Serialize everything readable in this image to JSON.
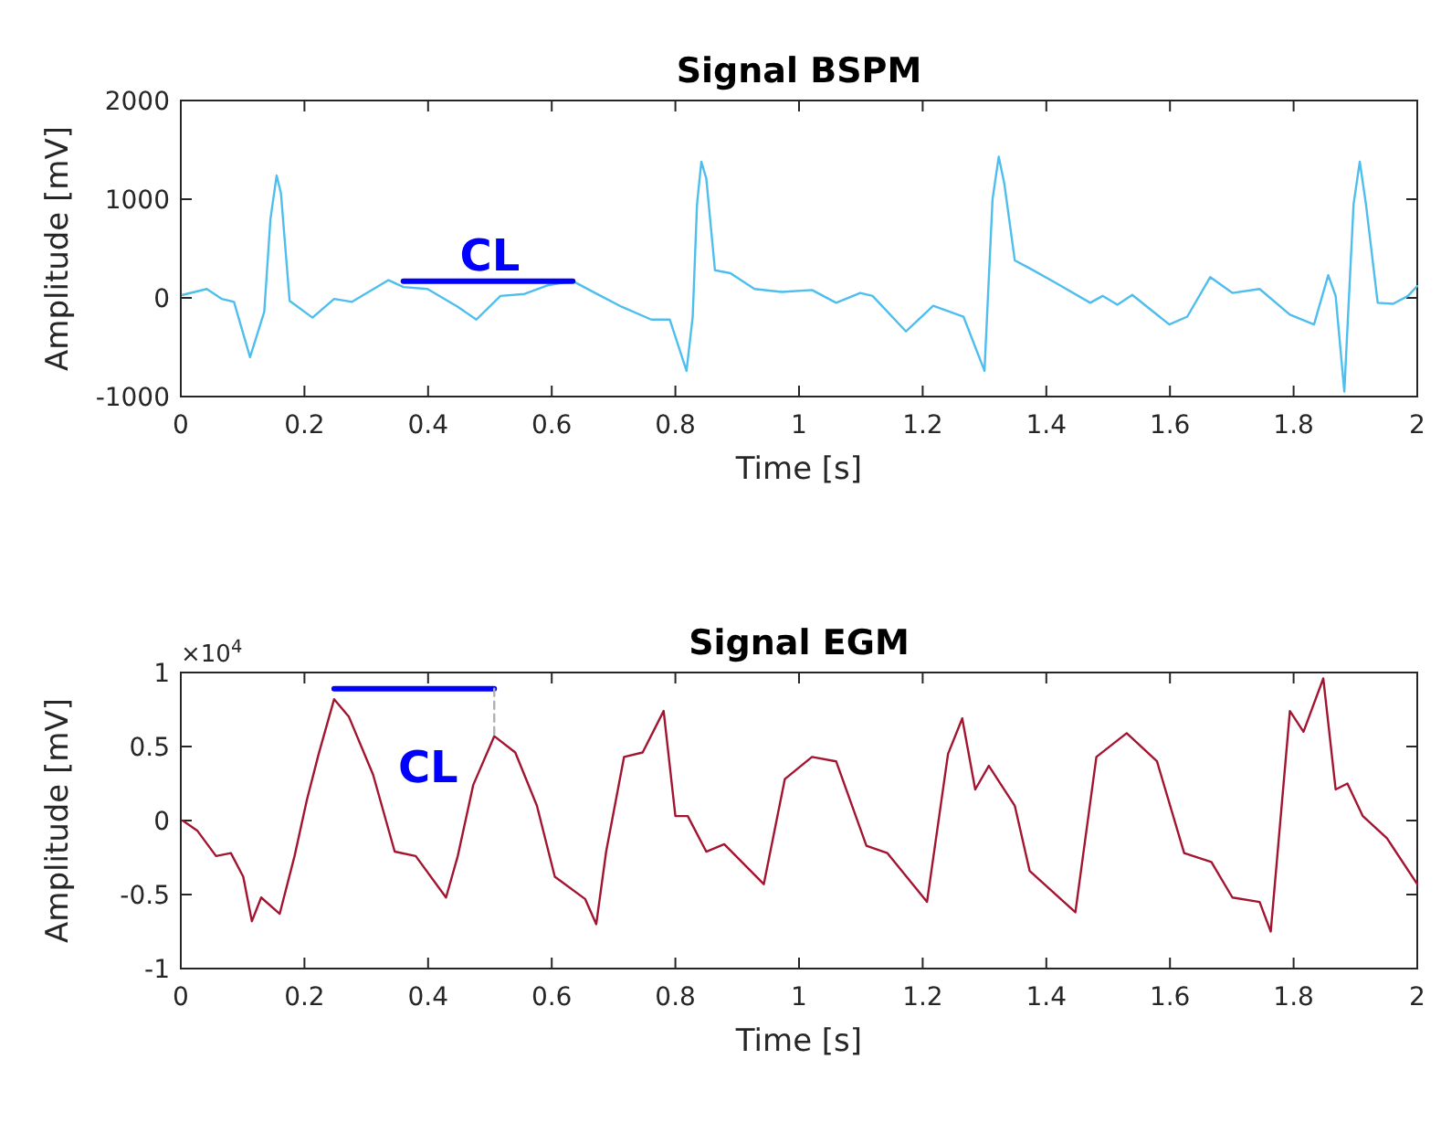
{
  "chart_data": [
    {
      "type": "line",
      "title": "Signal BSPM",
      "xlabel": "Time [s]",
      "ylabel": "Amplitude [mV]",
      "xlim": [
        0,
        2
      ],
      "xticks": [
        0,
        0.2,
        0.4,
        0.6,
        0.8,
        1,
        1.2,
        1.4,
        1.6,
        1.8,
        2
      ],
      "ylim": [
        -1000,
        2000
      ],
      "yticks": [
        -1000,
        0,
        1000,
        2000
      ],
      "grid": false,
      "series": [
        {
          "color": "#4dbeee",
          "x": [
            0.003,
            0.042,
            0.066,
            0.086,
            0.112,
            0.135,
            0.145,
            0.155,
            0.162,
            0.176,
            0.213,
            0.248,
            0.277,
            0.336,
            0.36,
            0.399,
            0.448,
            0.478,
            0.517,
            0.556,
            0.595,
            0.634,
            0.673,
            0.713,
            0.761,
            0.791,
            0.818,
            0.828,
            0.835,
            0.842,
            0.85,
            0.864,
            0.889,
            0.928,
            0.972,
            1.021,
            1.06,
            1.099,
            1.119,
            1.173,
            1.217,
            1.266,
            1.3,
            1.313,
            1.323,
            1.332,
            1.349,
            1.373,
            1.413,
            1.471,
            1.491,
            1.515,
            1.539,
            1.599,
            1.628,
            1.665,
            1.701,
            1.745,
            1.794,
            1.833,
            1.856,
            1.868,
            1.882,
            1.897,
            1.907,
            1.917,
            1.936,
            1.961,
            1.985,
            2.0
          ],
          "values": [
            30,
            90,
            -10,
            -40,
            -600,
            -140,
            800,
            1240,
            1060,
            -30,
            -200,
            -10,
            -40,
            180,
            110,
            90,
            -90,
            -220,
            20,
            40,
            130,
            170,
            40,
            -90,
            -220,
            -220,
            -740,
            -190,
            950,
            1380,
            1210,
            280,
            250,
            90,
            60,
            80,
            -50,
            50,
            20,
            -340,
            -80,
            -190,
            -740,
            1000,
            1430,
            1160,
            380,
            300,
            160,
            -50,
            20,
            -70,
            30,
            -270,
            -190,
            210,
            50,
            90,
            -170,
            -270,
            230,
            20,
            -950,
            950,
            1380,
            950,
            -50,
            -60,
            20,
            120
          ]
        },
        {
          "color": "#0000ff",
          "x": [
            0.36,
            0.634
          ],
          "values": [
            170,
            170
          ]
        }
      ],
      "annotations": [
        {
          "text": "CL",
          "x": 0.5,
          "y": 170
        }
      ]
    },
    {
      "type": "line",
      "title": "Signal EGM",
      "xlabel": "Time [s]",
      "ylabel": "Amplitude [mV]",
      "xlim": [
        0,
        2
      ],
      "xticks": [
        0,
        0.2,
        0.4,
        0.6,
        0.8,
        1,
        1.2,
        1.4,
        1.6,
        1.8,
        2
      ],
      "ylim": [
        -1,
        1
      ],
      "yticks": [
        -1,
        -0.5,
        0,
        0.5,
        1
      ],
      "grid": false,
      "series": [
        {
          "color": "#a2142f",
          "x": [
            0.003,
            0.027,
            0.057,
            0.081,
            0.101,
            0.115,
            0.13,
            0.16,
            0.184,
            0.204,
            0.223,
            0.248,
            0.272,
            0.311,
            0.346,
            0.38,
            0.429,
            0.448,
            0.473,
            0.507,
            0.541,
            0.576,
            0.605,
            0.654,
            0.672,
            0.688,
            0.717,
            0.747,
            0.781,
            0.8,
            0.82,
            0.85,
            0.879,
            0.943,
            0.977,
            1.021,
            1.06,
            1.109,
            1.143,
            1.207,
            1.241,
            1.264,
            1.285,
            1.307,
            1.349,
            1.373,
            1.447,
            1.481,
            1.53,
            1.579,
            1.623,
            1.667,
            1.701,
            1.745,
            1.763,
            1.794,
            1.816,
            1.848,
            1.868,
            1.887,
            1.912,
            1.951,
            2.0
          ],
          "values": [
            0,
            -0.07,
            -0.24,
            -0.22,
            -0.38,
            -0.68,
            -0.52,
            -0.63,
            -0.24,
            0.14,
            0.45,
            0.82,
            0.7,
            0.31,
            -0.21,
            -0.24,
            -0.52,
            -0.24,
            0.24,
            0.57,
            0.46,
            0.1,
            -0.38,
            -0.53,
            -0.7,
            -0.21,
            0.43,
            0.46,
            0.74,
            0.03,
            0.03,
            -0.21,
            -0.16,
            -0.43,
            0.28,
            0.43,
            0.4,
            -0.17,
            -0.22,
            -0.55,
            0.45,
            0.69,
            0.21,
            0.37,
            0.1,
            -0.34,
            -0.62,
            0.43,
            0.59,
            0.4,
            -0.22,
            -0.28,
            -0.52,
            -0.55,
            -0.75,
            0.74,
            0.6,
            0.96,
            0.21,
            0.25,
            0.03,
            -0.12,
            -0.43
          ]
        },
        {
          "color": "#0000ff",
          "x": [
            0.248,
            0.507
          ],
          "values": [
            0.89,
            0.89
          ]
        },
        {
          "color": "#b0b0b0",
          "line_style": "dashed",
          "x": [
            0.507,
            0.507
          ],
          "values": [
            0.89,
            0.57
          ]
        }
      ],
      "annotations": [
        "CL",
        "×10$^{4}$"
      ]
    }
  ]
}
